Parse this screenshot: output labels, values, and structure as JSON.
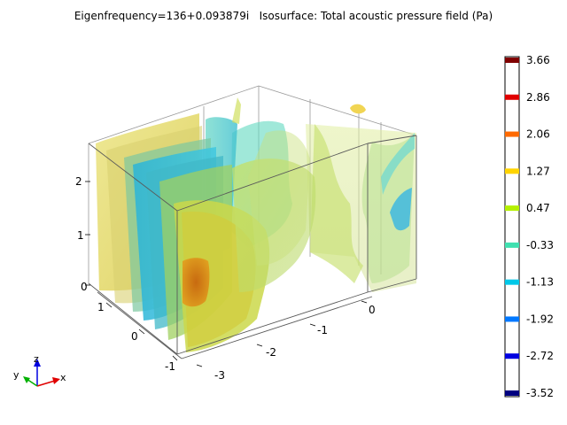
{
  "title": "Eigenfrequency=136+0.093879i   Isosurface: Total acoustic pressure field (Pa)",
  "colorbar": {
    "labels": [
      "3.66",
      "2.86",
      "2.06",
      "1.27",
      "0.47",
      "-0.33",
      "-1.13",
      "-1.92",
      "-2.72",
      "-3.52"
    ],
    "colors": [
      "#800000",
      "#e00000",
      "#ff6a00",
      "#ffd400",
      "#b4f000",
      "#40e0b0",
      "#00c8e8",
      "#0078ff",
      "#0000e0",
      "#000080"
    ]
  },
  "axes": {
    "z_ticks": [
      "2",
      "1",
      "0"
    ],
    "y_ticks": [
      "1",
      "0",
      "-1"
    ],
    "x_ticks": [
      "0",
      "-1",
      "-2",
      "-3"
    ]
  },
  "triad": {
    "x": "x",
    "y": "y",
    "z": "z"
  }
}
